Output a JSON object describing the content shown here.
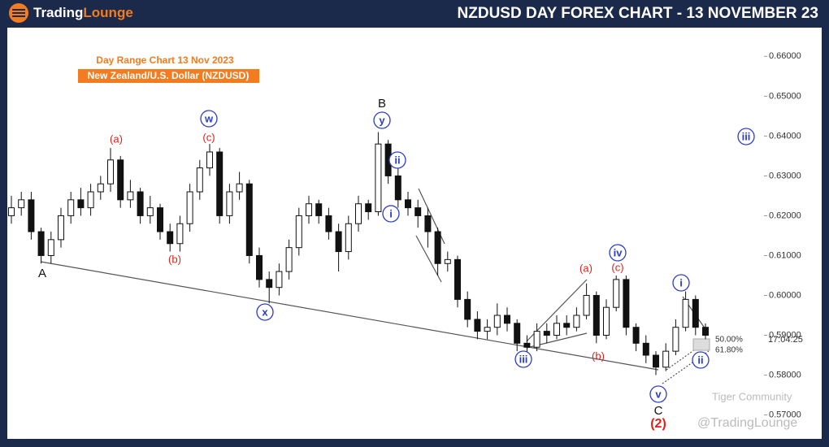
{
  "header": {
    "brand_first": "Trading",
    "brand_second": "Lounge"
  },
  "chart_data": {
    "type": "candlestick",
    "title": "NZDUSD DAY FOREX CHART - 13 NOVEMBER 23",
    "subtitle": "Day Range Chart 13 Nov  2023",
    "instrument": "New Zealand/U.S. Dollar (NZDUSD)",
    "ylim": [
      0.564,
      0.667
    ],
    "yticks": [
      {
        "value": 0.57,
        "label": "0.57000"
      },
      {
        "value": 0.58,
        "label": "0.58000"
      },
      {
        "value": 0.59,
        "label": "0.59000"
      },
      {
        "value": 0.6,
        "label": "0.60000"
      },
      {
        "value": 0.61,
        "label": "0.61000"
      },
      {
        "value": 0.62,
        "label": "0.62000"
      },
      {
        "value": 0.63,
        "label": "0.63000"
      },
      {
        "value": 0.64,
        "label": "0.64000"
      },
      {
        "value": 0.65,
        "label": "0.65000"
      },
      {
        "value": 0.66,
        "label": "0.66000"
      }
    ],
    "up_color": "#ffffff",
    "down_color": "#111111",
    "ohlc": [
      [
        0.62,
        0.625,
        0.618,
        0.622
      ],
      [
        0.622,
        0.626,
        0.62,
        0.624
      ],
      [
        0.624,
        0.626,
        0.614,
        0.616
      ],
      [
        0.616,
        0.617,
        0.608,
        0.61
      ],
      [
        0.61,
        0.616,
        0.608,
        0.614
      ],
      [
        0.614,
        0.622,
        0.612,
        0.62
      ],
      [
        0.62,
        0.626,
        0.618,
        0.624
      ],
      [
        0.624,
        0.627,
        0.62,
        0.622
      ],
      [
        0.622,
        0.628,
        0.62,
        0.626
      ],
      [
        0.626,
        0.63,
        0.624,
        0.628
      ],
      [
        0.628,
        0.637,
        0.626,
        0.634
      ],
      [
        0.634,
        0.635,
        0.622,
        0.624
      ],
      [
        0.624,
        0.629,
        0.622,
        0.626
      ],
      [
        0.626,
        0.627,
        0.618,
        0.62
      ],
      [
        0.62,
        0.625,
        0.618,
        0.622
      ],
      [
        0.622,
        0.623,
        0.614,
        0.616
      ],
      [
        0.616,
        0.618,
        0.611,
        0.613
      ],
      [
        0.613,
        0.62,
        0.611,
        0.618
      ],
      [
        0.618,
        0.628,
        0.616,
        0.626
      ],
      [
        0.626,
        0.634,
        0.624,
        0.632
      ],
      [
        0.632,
        0.638,
        0.63,
        0.636
      ],
      [
        0.636,
        0.637,
        0.618,
        0.62
      ],
      [
        0.62,
        0.628,
        0.618,
        0.626
      ],
      [
        0.626,
        0.631,
        0.624,
        0.628
      ],
      [
        0.628,
        0.629,
        0.608,
        0.61
      ],
      [
        0.61,
        0.612,
        0.602,
        0.604
      ],
      [
        0.604,
        0.606,
        0.598,
        0.602
      ],
      [
        0.602,
        0.608,
        0.6,
        0.606
      ],
      [
        0.606,
        0.614,
        0.604,
        0.612
      ],
      [
        0.612,
        0.622,
        0.61,
        0.62
      ],
      [
        0.62,
        0.625,
        0.618,
        0.623
      ],
      [
        0.623,
        0.624,
        0.618,
        0.62
      ],
      [
        0.62,
        0.622,
        0.614,
        0.616
      ],
      [
        0.616,
        0.618,
        0.606,
        0.611
      ],
      [
        0.611,
        0.62,
        0.609,
        0.618
      ],
      [
        0.618,
        0.625,
        0.616,
        0.623
      ],
      [
        0.623,
        0.624,
        0.619,
        0.621
      ],
      [
        0.621,
        0.641,
        0.62,
        0.638
      ],
      [
        0.638,
        0.639,
        0.628,
        0.63
      ],
      [
        0.63,
        0.632,
        0.622,
        0.624
      ],
      [
        0.624,
        0.626,
        0.62,
        0.622
      ],
      [
        0.622,
        0.624,
        0.617,
        0.62
      ],
      [
        0.62,
        0.622,
        0.612,
        0.616
      ],
      [
        0.616,
        0.617,
        0.605,
        0.608
      ],
      [
        0.608,
        0.611,
        0.606,
        0.609
      ],
      [
        0.609,
        0.61,
        0.597,
        0.599
      ],
      [
        0.599,
        0.601,
        0.592,
        0.594
      ],
      [
        0.594,
        0.596,
        0.589,
        0.591
      ],
      [
        0.591,
        0.594,
        0.589,
        0.592
      ],
      [
        0.592,
        0.598,
        0.59,
        0.595
      ],
      [
        0.595,
        0.597,
        0.591,
        0.593
      ],
      [
        0.593,
        0.594,
        0.586,
        0.588
      ],
      [
        0.588,
        0.59,
        0.585,
        0.587
      ],
      [
        0.587,
        0.593,
        0.586,
        0.591
      ],
      [
        0.591,
        0.593,
        0.588,
        0.59
      ],
      [
        0.59,
        0.595,
        0.589,
        0.593
      ],
      [
        0.593,
        0.595,
        0.59,
        0.592
      ],
      [
        0.592,
        0.597,
        0.591,
        0.595
      ],
      [
        0.595,
        0.603,
        0.594,
        0.6
      ],
      [
        0.6,
        0.601,
        0.588,
        0.59
      ],
      [
        0.59,
        0.599,
        0.589,
        0.597
      ],
      [
        0.597,
        0.605,
        0.596,
        0.604
      ],
      [
        0.604,
        0.605,
        0.59,
        0.592
      ],
      [
        0.592,
        0.593,
        0.586,
        0.588
      ],
      [
        0.588,
        0.59,
        0.583,
        0.585
      ],
      [
        0.585,
        0.586,
        0.58,
        0.582
      ],
      [
        0.582,
        0.588,
        0.581,
        0.586
      ],
      [
        0.586,
        0.594,
        0.585,
        0.592
      ],
      [
        0.592,
        0.601,
        0.591,
        0.599
      ],
      [
        0.599,
        0.6,
        0.59,
        0.592
      ],
      [
        0.592,
        0.593,
        0.589,
        0.59
      ]
    ],
    "annotations": [
      "A",
      "(a)",
      "(b)",
      "(c)",
      "w",
      "x",
      "B",
      "y",
      "ii",
      "i",
      "(a)",
      "(c)",
      "iv",
      "iii",
      "(b)",
      "i",
      "ii",
      "v",
      "C",
      "(2)",
      "iii"
    ],
    "fib_labels": [
      "50.00%",
      "61.80%"
    ],
    "timer": "17:04:25",
    "watermarks": [
      "Tiger Community",
      "@TradingLounge"
    ]
  }
}
